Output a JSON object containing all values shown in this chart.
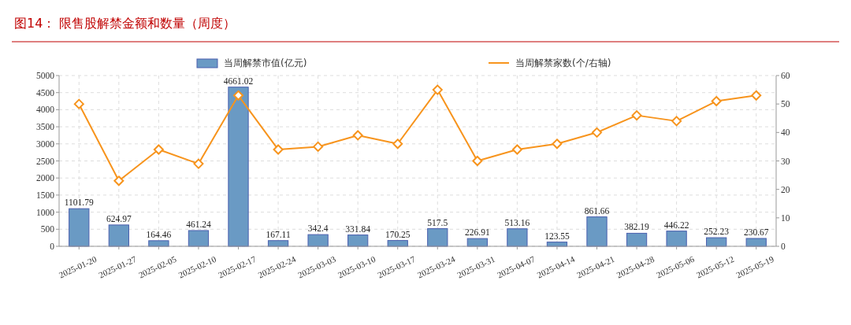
{
  "chart_data": {
    "type": "bar",
    "title": "图14：  限售股解禁金额和数量（周度）",
    "categories": [
      "2025-01-20",
      "2025-01-27",
      "2025-02-05",
      "2025-02-10",
      "2025-02-17",
      "2025-02-24",
      "2025-03-03",
      "2025-03-10",
      "2025-03-17",
      "2025-03-24",
      "2025-03-31",
      "2025-04-07",
      "2025-04-14",
      "2025-04-21",
      "2025-04-28",
      "2025-05-06",
      "2025-05-12",
      "2025-05-19"
    ],
    "series": [
      {
        "name": "当周解禁市值(亿元)",
        "color": "#6a9ac4",
        "values": [
          1101.79,
          624.97,
          164.46,
          461.24,
          4661.02,
          167.11,
          342.4,
          331.84,
          170.25,
          517.5,
          226.91,
          513.16,
          123.55,
          861.66,
          382.19,
          446.22,
          252.23,
          230.67
        ],
        "value_labels": [
          "1101.79",
          "624.97",
          "164.46",
          "461.24",
          "4661.02",
          "167.11",
          "342.4",
          "331.84",
          "170.25",
          "517.5",
          "226.91",
          "513.16",
          "123.55",
          "861.66",
          "382.19",
          "446.22",
          "252.23",
          "230.67"
        ]
      },
      {
        "name": "当周解禁家数(个/右轴)",
        "type": "line",
        "axis": "y2",
        "color": "#f7941d",
        "marker": "diamond",
        "values": [
          50,
          23,
          34,
          29,
          53,
          34,
          35,
          39,
          36,
          55,
          30,
          34,
          36,
          40,
          46,
          44,
          51,
          53
        ]
      }
    ],
    "ylim": [
      0,
      5000
    ],
    "yticks": [
      0,
      500,
      1000,
      1500,
      2000,
      2500,
      3000,
      3500,
      4000,
      4500,
      5000
    ],
    "y2lim": [
      0,
      60
    ],
    "y2ticks": [
      0,
      10,
      20,
      30,
      40,
      50,
      60
    ],
    "grid": true,
    "legend": "top"
  }
}
